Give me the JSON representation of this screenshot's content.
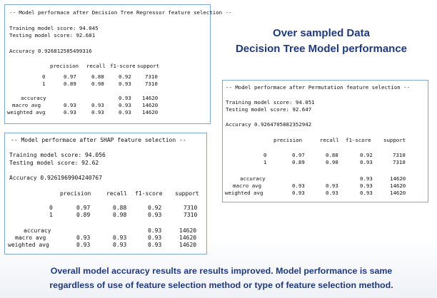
{
  "title": {
    "line1": "Over sampled Data",
    "line2": "Decision Tree Model performance"
  },
  "footer": {
    "line1": "Overall model accuracy results are results improved. Model performance is same",
    "line2": "regardless of use of feature selection method or type of feature selection method."
  },
  "panels": [
    {
      "header": "-- Model performace after Decision Tree Regressor feature selection --",
      "training": "Training model score:  94.045",
      "testing": "Testing model score:  92.681",
      "accuracy": "Accuracy 0.926812585499316",
      "columns": [
        "precision",
        "recall",
        "f1-score",
        "support"
      ],
      "rows": [
        {
          "label": "0",
          "values": [
            "0.97",
            "0.88",
            "0.92",
            "7310"
          ]
        },
        {
          "label": "1",
          "values": [
            "0.89",
            "0.98",
            "0.93",
            "7310"
          ]
        }
      ],
      "summary": [
        {
          "label": "accuracy",
          "values": [
            "",
            "",
            "0.93",
            "14620"
          ]
        },
        {
          "label": "macro avg",
          "values": [
            "0.93",
            "0.93",
            "0.93",
            "14620"
          ]
        },
        {
          "label": "weighted avg",
          "values": [
            "0.93",
            "0.93",
            "0.93",
            "14620"
          ]
        }
      ]
    },
    {
      "header": "-- Model performace after SHAP feature selection --",
      "training": "Training model score:  94.056",
      "testing": "Testing model score:  92.62",
      "accuracy": "Accuracy 0.9261969904240767",
      "columns": [
        "precision",
        "recall",
        "f1-score",
        "support"
      ],
      "rows": [
        {
          "label": "0",
          "values": [
            "0.97",
            "0.88",
            "0.92",
            "7310"
          ]
        },
        {
          "label": "1",
          "values": [
            "0.89",
            "0.98",
            "0.93",
            "7310"
          ]
        }
      ],
      "summary": [
        {
          "label": "accuracy",
          "values": [
            "",
            "",
            "0.93",
            "14620"
          ]
        },
        {
          "label": "macro avg",
          "values": [
            "0.93",
            "0.93",
            "0.93",
            "14620"
          ]
        },
        {
          "label": "weighted avg",
          "values": [
            "0.93",
            "0.93",
            "0.93",
            "14620"
          ]
        }
      ]
    },
    {
      "header": "-- Model performace after Permutation feature selection --",
      "training": "Training model score:  94.051",
      "testing": "Testing model score:  92.647",
      "accuracy": "Accuracy 0.9264705882352942",
      "columns": [
        "precision",
        "recall",
        "f1-score",
        "support"
      ],
      "rows": [
        {
          "label": "0",
          "values": [
            "0.97",
            "0.88",
            "0.92",
            "7310"
          ]
        },
        {
          "label": "1",
          "values": [
            "0.89",
            "0.98",
            "0.93",
            "7310"
          ]
        }
      ],
      "summary": [
        {
          "label": "accuracy",
          "values": [
            "",
            "",
            "0.93",
            "14620"
          ]
        },
        {
          "label": "macro avg",
          "values": [
            "0.93",
            "0.93",
            "0.93",
            "14620"
          ]
        },
        {
          "label": "weighted avg",
          "values": [
            "0.93",
            "0.93",
            "0.93",
            "14620"
          ]
        }
      ]
    }
  ]
}
